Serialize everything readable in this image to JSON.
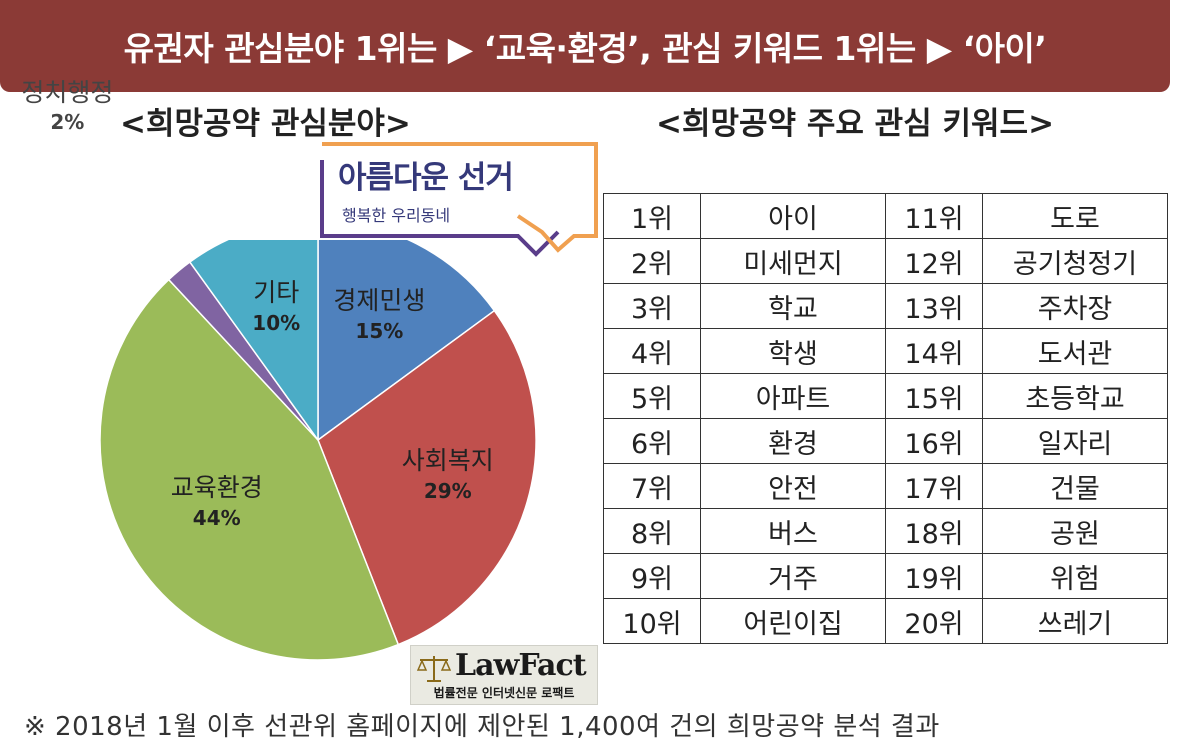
{
  "banner": {
    "text": "유권자 관심분야 1위는 ▶ ‘교육·환경’, 관심 키워드 1위는 ▶ ‘아이’"
  },
  "left_title": "<희망공약  관심분야>",
  "right_title": "<희망공약  주요  관심  키워드>",
  "callout": {
    "title": "아름다운 선거",
    "subtitle": "행복한 우리동네"
  },
  "chart_data": {
    "type": "pie",
    "slices": [
      {
        "label": "경제민생",
        "value": 15,
        "value_label": "15%",
        "color": "#4f81bd"
      },
      {
        "label": "사회복지",
        "value": 29,
        "value_label": "29%",
        "color": "#c0504d"
      },
      {
        "label": "교육환경",
        "value": 44,
        "value_label": "44%",
        "color": "#9bbb59"
      },
      {
        "label": "정치행정",
        "value": 2,
        "value_label": "2%",
        "color": "#8064a2"
      },
      {
        "label": "기타",
        "value": 10,
        "value_label": "10%",
        "color": "#4bacc6"
      }
    ]
  },
  "table": {
    "rows": [
      {
        "rank_a": "1위",
        "word_a": "아이",
        "rank_b": "11위",
        "word_b": "도로"
      },
      {
        "rank_a": "2위",
        "word_a": "미세먼지",
        "rank_b": "12위",
        "word_b": "공기청정기"
      },
      {
        "rank_a": "3위",
        "word_a": "학교",
        "rank_b": "13위",
        "word_b": "주차장"
      },
      {
        "rank_a": "4위",
        "word_a": "학생",
        "rank_b": "14위",
        "word_b": "도서관"
      },
      {
        "rank_a": "5위",
        "word_a": "아파트",
        "rank_b": "15위",
        "word_b": "초등학교"
      },
      {
        "rank_a": "6위",
        "word_a": "환경",
        "rank_b": "16위",
        "word_b": "일자리"
      },
      {
        "rank_a": "7위",
        "word_a": "안전",
        "rank_b": "17위",
        "word_b": "건물"
      },
      {
        "rank_a": "8위",
        "word_a": "버스",
        "rank_b": "18위",
        "word_b": "공원"
      },
      {
        "rank_a": "9위",
        "word_a": "거주",
        "rank_b": "19위",
        "word_b": "위험"
      },
      {
        "rank_a": "10위",
        "word_a": "어린이집",
        "rank_b": "20위",
        "word_b": "쓰레기"
      }
    ]
  },
  "logo": {
    "name": "LawFact",
    "tagline": "법률전문 인터넷신문 로팩트",
    "icon": "scales-icon"
  },
  "footnote": "※ 2018년 1월 이후 선관위 홈페이지에 제안된 1,400여 건의 희망공약 분석 결과"
}
